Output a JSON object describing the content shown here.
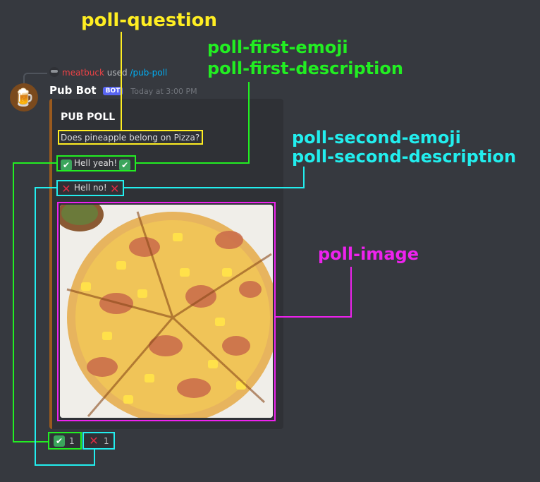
{
  "annotations": {
    "poll_question": "poll-question",
    "poll_first": [
      "poll-first-emoji",
      "poll-first-description"
    ],
    "poll_second": [
      "poll-second-emoji",
      "poll-second-description"
    ],
    "poll_image": "poll-image"
  },
  "reply": {
    "username": "meatbuck",
    "verb": "used",
    "command": "/pub-poll"
  },
  "message": {
    "author": "Pub Bot",
    "author_tag": "BOT",
    "timestamp": "Today at 3:00 PM",
    "avatar_icon": "beer-mug-icon"
  },
  "embed": {
    "title": "PUB POLL",
    "question": "Does pineapple belong on Pizza?",
    "option_one": {
      "emoji": "✅",
      "description": "Hell yeah!"
    },
    "option_two": {
      "emoji": "❌",
      "description": "Hell no!"
    },
    "image_subject": "pineapple-ham-pizza",
    "accent_color": "#9a5a1e"
  },
  "reactions": [
    {
      "emoji": "✅",
      "count": "1"
    },
    {
      "emoji": "❌",
      "count": "1"
    }
  ],
  "colors": {
    "question_box": "#ffee22",
    "first_box": "#22ee22",
    "second_box": "#22eeee",
    "image_box": "#ee22ee"
  }
}
